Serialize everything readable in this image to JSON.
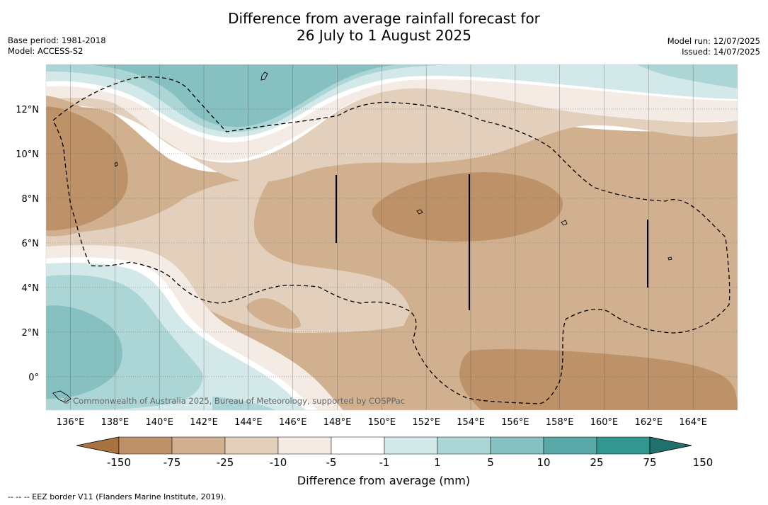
{
  "title": {
    "line1": "Difference from average rainfall forecast for",
    "line2": "26 July to 1 August 2025"
  },
  "meta_left": {
    "base_period": "Base period: 1981-2018",
    "model": "Model: ACCESS-S2"
  },
  "meta_right": {
    "model_run": "Model run: 12/07/2025",
    "issued": "Issued: 14/07/2025"
  },
  "map": {
    "lon_range": [
      134.9,
      166.0
    ],
    "lat_range": [
      -1.5,
      14.0
    ],
    "lon_ticks": [
      136,
      138,
      140,
      142,
      144,
      146,
      148,
      150,
      152,
      154,
      156,
      158,
      160,
      162,
      164
    ],
    "lat_ticks": [
      0,
      2,
      4,
      6,
      8,
      10,
      12
    ],
    "lon_tick_labels": [
      "136°E",
      "138°E",
      "140°E",
      "142°E",
      "144°E",
      "146°E",
      "148°E",
      "150°E",
      "152°E",
      "154°E",
      "156°E",
      "158°E",
      "160°E",
      "162°E",
      "164°E"
    ],
    "lat_tick_labels": [
      "0°",
      "2°N",
      "4°N",
      "6°N",
      "8°N",
      "10°N",
      "12°N"
    ],
    "copyright": "© Commonwealth of Australia 2025, Bureau of Meteorology, supported by COSPPac"
  },
  "colorbar": {
    "colors": [
      "#a8733f",
      "#bd9268",
      "#d1b08f",
      "#e3d0bc",
      "#f4ebe5",
      "#ffffff",
      "#d3e8e8",
      "#acd6d6",
      "#86c0c0",
      "#58a8a8",
      "#33968f",
      "#20706c"
    ],
    "tick_labels": [
      "-150",
      "-75",
      "-25",
      "-10",
      "-5",
      "-1",
      "1",
      "5",
      "10",
      "25",
      "75",
      "150"
    ],
    "label": "Difference from average (mm)"
  },
  "legend_note": "-- -- -- EEZ border V11 (Flanders Marine Institute, 2019)."
}
